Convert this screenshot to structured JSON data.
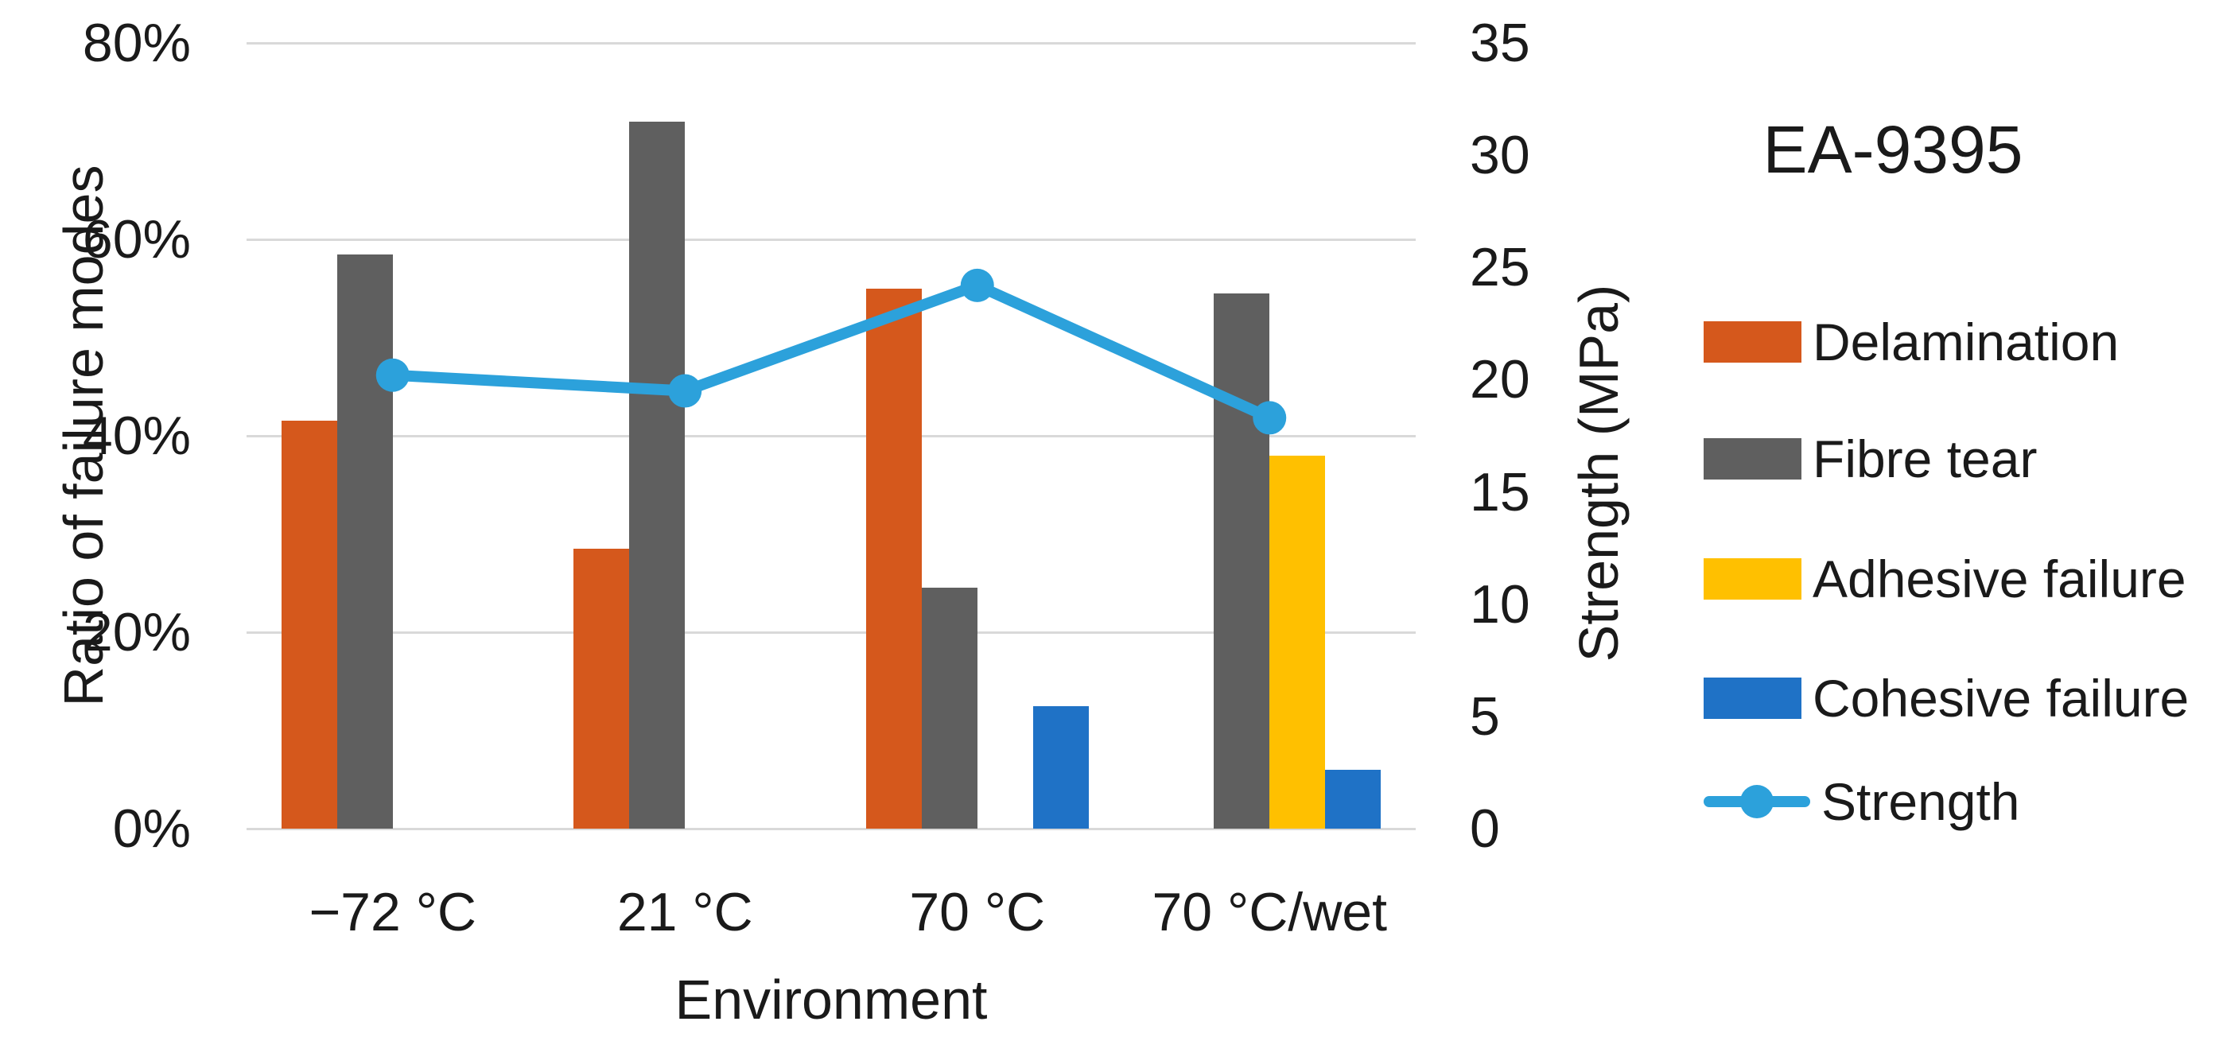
{
  "chart_data": {
    "type": "bar+line",
    "title": "EA-9395",
    "xlabel": "Environment",
    "ylabel_left": "Ratio of failure modes",
    "ylabel_right": "Strength (MPa)",
    "categories": [
      "−72 °C",
      "21 °C",
      "70 °C",
      "70 °C/wet"
    ],
    "y_left_axis": {
      "min": 0,
      "max": 80,
      "tick_values": [
        0,
        20,
        40,
        60,
        80
      ],
      "tick_labels": [
        "0%",
        "20%",
        "40%",
        "60%",
        "80%"
      ]
    },
    "y_right_axis": {
      "min": 0,
      "max": 35,
      "tick_values": [
        0,
        5,
        10,
        15,
        20,
        25,
        30,
        35
      ],
      "tick_labels": [
        "0",
        "5",
        "10",
        "15",
        "20",
        "25",
        "30",
        "35"
      ]
    },
    "bar_series": [
      {
        "name": "Delamination",
        "color": "#d5581c",
        "values": [
          41.5,
          28.5,
          55,
          0
        ]
      },
      {
        "name": "Fibre tear",
        "color": "#5f5f5f",
        "values": [
          58.5,
          72,
          24.5,
          54.5
        ]
      },
      {
        "name": "Adhesive failure",
        "color": "#ffc000",
        "values": [
          0,
          0,
          0,
          38
        ]
      },
      {
        "name": "Cohesive failure",
        "color": "#1f72c6",
        "values": [
          0,
          0,
          12.5,
          6
        ]
      }
    ],
    "line_series": {
      "name": "Strength",
      "color": "#2ca1db",
      "axis": "right",
      "values": [
        20.2,
        19.5,
        24.2,
        18.3
      ]
    },
    "grid": true,
    "gridline_color": "#d9d9d9",
    "legend_position": "right",
    "background": "#ffffff"
  }
}
